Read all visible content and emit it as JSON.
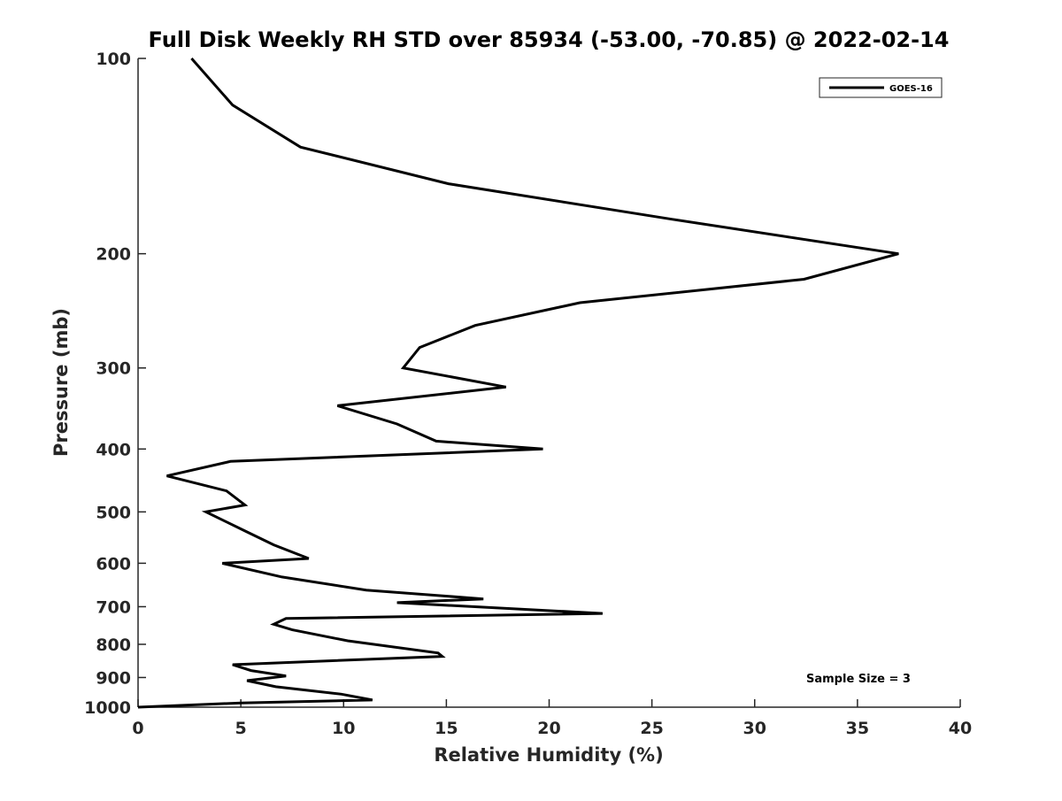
{
  "chart_data": {
    "type": "line",
    "title": "Full Disk Weekly RH STD over 85934 (-53.00, -70.85) @ 2022-02-14",
    "xlabel": "Relative Humidity (%)",
    "ylabel": "Pressure (mb)",
    "xlim": [
      0,
      40
    ],
    "ylim": [
      100,
      1000
    ],
    "y_scale": "log",
    "y_reversed": true,
    "x_ticks": [
      "0",
      "5",
      "10",
      "15",
      "20",
      "25",
      "30",
      "35",
      "40"
    ],
    "y_ticks": [
      "100",
      "200",
      "300",
      "400",
      "500",
      "600",
      "700",
      "800",
      "900",
      "1000"
    ],
    "grid": false,
    "legend": {
      "placement": "top-right",
      "entries": [
        "GOES-16"
      ]
    },
    "annotation": "Sample Size = 3",
    "series": [
      {
        "name": "GOES-16",
        "color": "#000000",
        "points": [
          [
            2.6,
            100
          ],
          [
            4.6,
            118
          ],
          [
            7.9,
            137
          ],
          [
            15.1,
            156
          ],
          [
            26.0,
            177
          ],
          [
            37.0,
            200
          ],
          [
            32.4,
            219
          ],
          [
            21.5,
            238
          ],
          [
            16.4,
            258
          ],
          [
            13.7,
            279
          ],
          [
            12.9,
            300
          ],
          [
            17.9,
            321
          ],
          [
            9.7,
            343
          ],
          [
            12.6,
            366
          ],
          [
            14.5,
            389
          ],
          [
            19.7,
            400
          ],
          [
            4.5,
            418
          ],
          [
            1.4,
            440
          ],
          [
            4.3,
            464
          ],
          [
            5.2,
            488
          ],
          [
            3.3,
            500
          ],
          [
            5.2,
            535
          ],
          [
            6.6,
            562
          ],
          [
            8.3,
            590
          ],
          [
            4.1,
            600
          ],
          [
            7.0,
            630
          ],
          [
            11.1,
            660
          ],
          [
            16.8,
            681
          ],
          [
            12.6,
            690
          ],
          [
            22.6,
            717
          ],
          [
            7.2,
            730
          ],
          [
            6.6,
            745
          ],
          [
            7.5,
            760
          ],
          [
            10.2,
            790
          ],
          [
            14.6,
            825
          ],
          [
            14.8,
            835
          ],
          [
            4.6,
            860
          ],
          [
            5.5,
            878
          ],
          [
            7.2,
            895
          ],
          [
            5.3,
            910
          ],
          [
            6.7,
            930
          ],
          [
            9.9,
            955
          ],
          [
            11.4,
            975
          ],
          [
            5.0,
            985
          ],
          [
            0.0,
            1000
          ]
        ]
      }
    ]
  }
}
